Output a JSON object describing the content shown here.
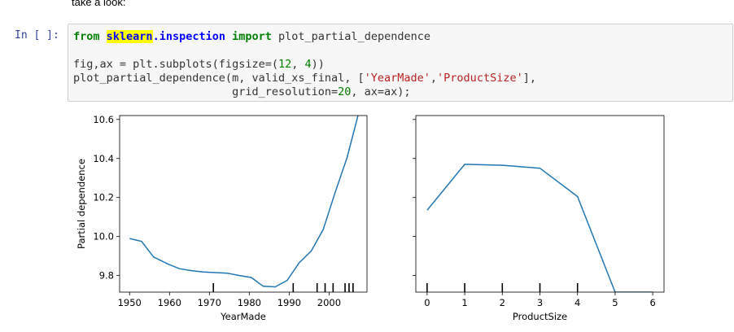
{
  "intro_text": "take a look:",
  "cell": {
    "prompt": "In [ ]:",
    "line1": {
      "kw_from": "from",
      "module_hl": "sklearn",
      "module_rest": ".inspection",
      "kw_import": "import",
      "name": "plot_partial_dependence"
    },
    "line2": {
      "code_a": "fig,ax = plt.subplots(figsize=(",
      "n1": "12",
      "comma": ", ",
      "n2": "4",
      "code_b": "))"
    },
    "line3": {
      "code_a": "plot_partial_dependence(m, valid_xs_final, [",
      "s1": "'YearMade'",
      "comma": ",",
      "s2": "'ProductSize'",
      "code_b": "],"
    },
    "line4": {
      "code_a": "                        grid_resolution=",
      "n1": "20",
      "code_b": ", ax=ax);"
    }
  },
  "colors": {
    "line": "#1f77b4",
    "prompt": "#303f9f",
    "keyword": "#008000",
    "module": "#0000ff",
    "string": "#ba2121",
    "highlight": "#ffff00"
  },
  "chart_data": [
    {
      "type": "line",
      "xlabel": "YearMade",
      "ylabel": "Partial dependence",
      "xlim": [
        1947.5,
        2009.5
      ],
      "ylim": [
        9.715,
        10.62
      ],
      "xticks": [
        1950,
        1960,
        1970,
        1980,
        1990,
        2000
      ],
      "yticks": [
        9.8,
        10.0,
        10.2,
        10.4,
        10.6
      ],
      "ytick_labels": [
        "9.8",
        "10.0",
        "10.2",
        "10.4",
        "10.6"
      ],
      "x": [
        1950,
        1953,
        1956,
        1959.5,
        1962.5,
        1965.5,
        1968.5,
        1971.5,
        1974.5,
        1977.5,
        1980.5,
        1983.5,
        1986.5,
        1989.5,
        1992.5,
        1995.5,
        1998.5,
        2001.5,
        2004.5,
        2007.5
      ],
      "values": [
        9.99,
        9.975,
        9.895,
        9.86,
        9.835,
        9.825,
        9.818,
        9.815,
        9.812,
        9.8,
        9.79,
        9.745,
        9.742,
        9.775,
        9.865,
        9.925,
        10.035,
        10.225,
        10.405,
        10.64
      ],
      "rug": [
        1971,
        1991,
        1997,
        1999,
        2001,
        2004,
        2005,
        2006
      ]
    },
    {
      "type": "line",
      "xlabel": "ProductSize",
      "ylabel": "",
      "xlim": [
        -0.3,
        6.3
      ],
      "ylim": [
        9.715,
        10.62
      ],
      "xticks": [
        0,
        1,
        2,
        3,
        4,
        5,
        6
      ],
      "yticks": [
        9.8,
        10.0,
        10.2,
        10.4,
        10.6
      ],
      "x": [
        0,
        1,
        2,
        3,
        4,
        5,
        6
      ],
      "values": [
        10.135,
        10.37,
        10.365,
        10.35,
        10.205,
        9.715,
        9.715
      ],
      "rug": [
        0,
        1,
        2,
        3,
        4
      ]
    }
  ]
}
